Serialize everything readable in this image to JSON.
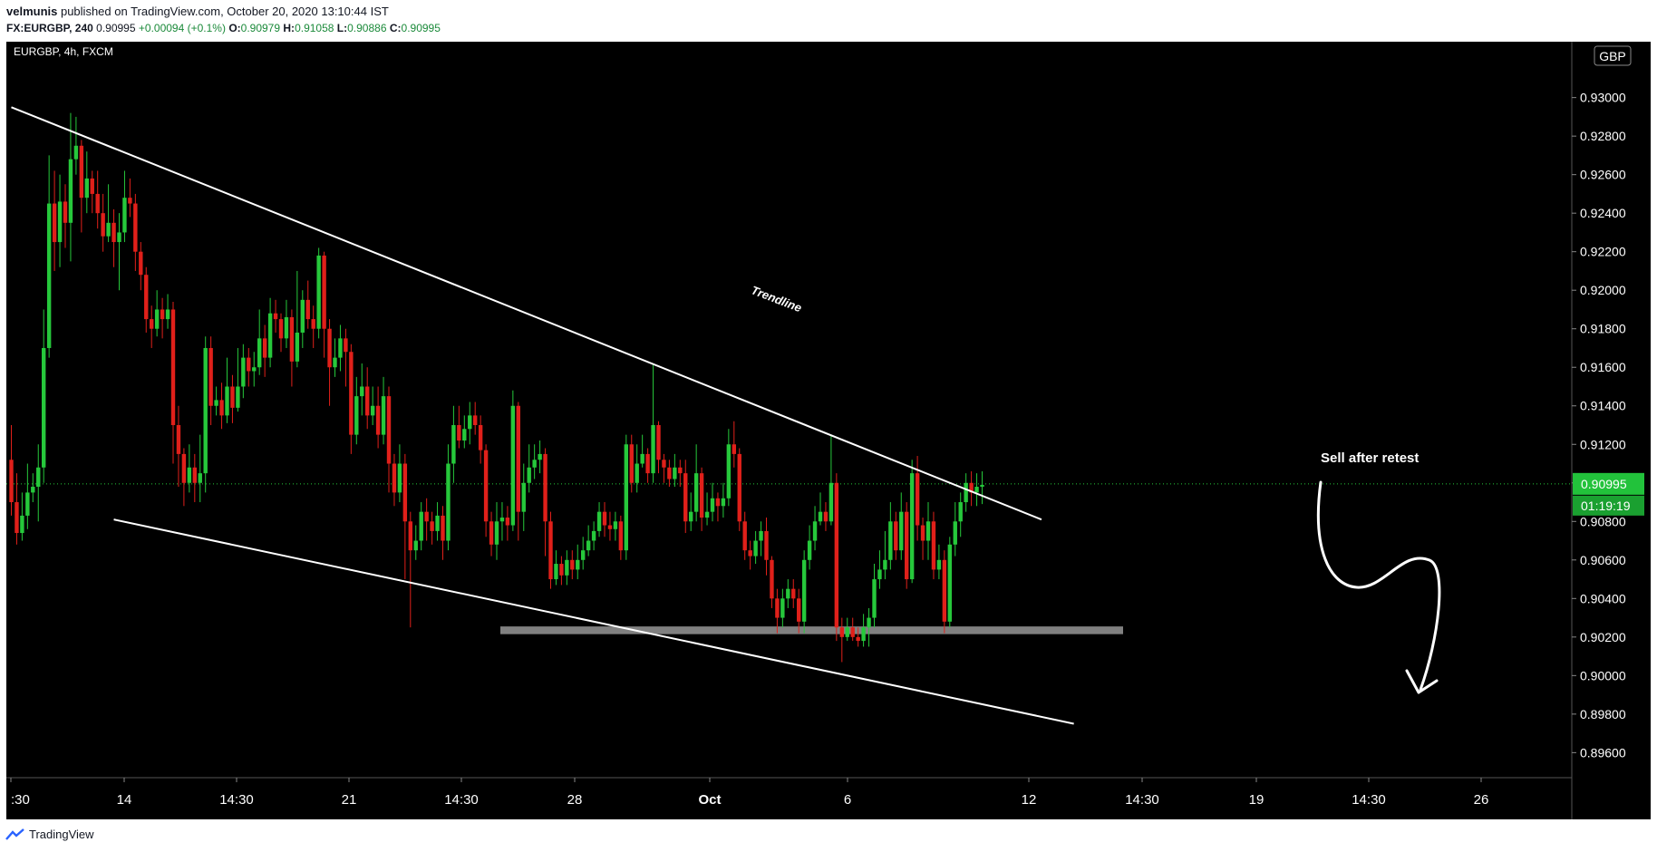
{
  "header": {
    "line1": {
      "author": "velmunis",
      "text": " published on TradingView.com, October 20, 2020 13:10:44 IST"
    },
    "line2": {
      "symbol": "FX:EURGBP, 240",
      "last": "0.90995",
      "change": "+0.00094 (+0.1%)",
      "o_label": "O:",
      "o_value": "0.90979",
      "h_label": "H:",
      "h_value": "0.91058",
      "l_label": "L:",
      "l_value": "0.90886",
      "c_label": "C:",
      "c_value": "0.90995"
    }
  },
  "footer": {
    "brand": "TradingView"
  },
  "colors": {
    "background": "#000000",
    "bull": "#26c83b",
    "bear": "#e0201a",
    "trendline": "#ffffff",
    "support_zone": "#808080",
    "price_label_bg": "#22c23b"
  },
  "chart_data": {
    "type": "candlestick",
    "title": "EURGBP, 4h, FXCM",
    "currency": "GBP",
    "ylim": [
      0.8947,
      0.9329
    ],
    "y_ticks": [
      "0.93000",
      "0.92800",
      "0.92600",
      "0.92400",
      "0.92200",
      "0.92000",
      "0.91800",
      "0.91600",
      "0.91400",
      "0.91200",
      "0.91000",
      "0.90800",
      "0.90600",
      "0.90400",
      "0.90200",
      "0.90000",
      "0.89800",
      "0.89600"
    ],
    "x_ticks": [
      ":30",
      "14",
      "14:30",
      "21",
      "14:30",
      "28",
      "Oct",
      "6",
      "12",
      "14:30",
      "19",
      "14:30",
      "26"
    ],
    "last_price": "0.90995",
    "countdown": "01:19:19",
    "grid": false,
    "annotations": {
      "trendline_label": "Trendline",
      "sell_label": "Sell after retest",
      "support_zone": [
        0.90215,
        0.90255
      ]
    },
    "trendlines": [
      {
        "name": "upper",
        "from": [
          0,
          0.9295
        ],
        "to": [
          191,
          0.9081
        ]
      },
      {
        "name": "lower",
        "from": [
          19,
          0.9081
        ],
        "to": [
          197,
          0.8975
        ]
      }
    ],
    "candles": [
      [
        0.9112,
        0.909,
        0.913,
        0.9083
      ],
      [
        0.909,
        0.9074,
        0.9105,
        0.9068
      ],
      [
        0.9074,
        0.9083,
        0.9095,
        0.907
      ],
      [
        0.9083,
        0.9095,
        0.911,
        0.9076
      ],
      [
        0.9095,
        0.9098,
        0.9105,
        0.909
      ],
      [
        0.9098,
        0.9108,
        0.912,
        0.908
      ],
      [
        0.9108,
        0.917,
        0.919,
        0.91
      ],
      [
        0.917,
        0.9245,
        0.927,
        0.9165
      ],
      [
        0.9245,
        0.9225,
        0.9262,
        0.921
      ],
      [
        0.9225,
        0.9246,
        0.926,
        0.9212
      ],
      [
        0.9246,
        0.9235,
        0.9255,
        0.9222
      ],
      [
        0.9235,
        0.9268,
        0.9292,
        0.9215
      ],
      [
        0.9268,
        0.9275,
        0.929,
        0.926
      ],
      [
        0.9275,
        0.9248,
        0.9278,
        0.923
      ],
      [
        0.9248,
        0.9258,
        0.9272,
        0.924
      ],
      [
        0.9258,
        0.925,
        0.9262,
        0.924
      ],
      [
        0.925,
        0.924,
        0.9262,
        0.9232
      ],
      [
        0.924,
        0.9228,
        0.925,
        0.922
      ],
      [
        0.9228,
        0.9235,
        0.9255,
        0.9225
      ],
      [
        0.9235,
        0.9225,
        0.9242,
        0.9212
      ],
      [
        0.9225,
        0.923,
        0.924,
        0.92
      ],
      [
        0.923,
        0.9248,
        0.9262,
        0.9225
      ],
      [
        0.9248,
        0.9245,
        0.9258,
        0.9238
      ],
      [
        0.9245,
        0.922,
        0.925,
        0.921
      ],
      [
        0.922,
        0.9208,
        0.9225,
        0.92
      ],
      [
        0.9208,
        0.9185,
        0.9212,
        0.9178
      ],
      [
        0.9185,
        0.918,
        0.9192,
        0.917
      ],
      [
        0.918,
        0.919,
        0.92,
        0.9176
      ],
      [
        0.919,
        0.9185,
        0.9196,
        0.9175
      ],
      [
        0.9185,
        0.919,
        0.9198,
        0.918
      ],
      [
        0.919,
        0.913,
        0.9194,
        0.911
      ],
      [
        0.913,
        0.9115,
        0.914,
        0.9098
      ],
      [
        0.9115,
        0.91,
        0.9118,
        0.9088
      ],
      [
        0.91,
        0.9108,
        0.912,
        0.9095
      ],
      [
        0.9108,
        0.91,
        0.9115,
        0.909
      ],
      [
        0.91,
        0.9105,
        0.9125,
        0.909
      ],
      [
        0.9105,
        0.917,
        0.9176,
        0.9095
      ],
      [
        0.917,
        0.914,
        0.9176,
        0.913
      ],
      [
        0.914,
        0.9143,
        0.915,
        0.9135
      ],
      [
        0.9143,
        0.9135,
        0.9152,
        0.9128
      ],
      [
        0.9135,
        0.915,
        0.9165,
        0.9131
      ],
      [
        0.915,
        0.9139,
        0.9156,
        0.9131
      ],
      [
        0.9139,
        0.915,
        0.917,
        0.9137
      ],
      [
        0.915,
        0.9165,
        0.9172,
        0.9144
      ],
      [
        0.9165,
        0.9158,
        0.917,
        0.915
      ],
      [
        0.9158,
        0.916,
        0.9168,
        0.915
      ],
      [
        0.916,
        0.9175,
        0.919,
        0.9156
      ],
      [
        0.9175,
        0.9165,
        0.9182,
        0.9155
      ],
      [
        0.9165,
        0.9188,
        0.9196,
        0.916
      ],
      [
        0.9188,
        0.9185,
        0.9195,
        0.9178
      ],
      [
        0.9185,
        0.9175,
        0.9188,
        0.9168
      ],
      [
        0.9175,
        0.9186,
        0.9195,
        0.917
      ],
      [
        0.9186,
        0.9163,
        0.919,
        0.915
      ],
      [
        0.9163,
        0.9178,
        0.921,
        0.916
      ],
      [
        0.9178,
        0.9195,
        0.92,
        0.917
      ],
      [
        0.9195,
        0.9185,
        0.9205,
        0.918
      ],
      [
        0.9185,
        0.918,
        0.9192,
        0.917
      ],
      [
        0.918,
        0.9218,
        0.9222,
        0.9175
      ],
      [
        0.9218,
        0.918,
        0.922,
        0.9165
      ],
      [
        0.918,
        0.916,
        0.9185,
        0.914
      ],
      [
        0.916,
        0.9165,
        0.9175,
        0.9155
      ],
      [
        0.9165,
        0.9175,
        0.9182,
        0.9158
      ],
      [
        0.9175,
        0.9168,
        0.918,
        0.915
      ],
      [
        0.9168,
        0.9125,
        0.9172,
        0.9115
      ],
      [
        0.9125,
        0.9145,
        0.9155,
        0.912
      ],
      [
        0.9145,
        0.915,
        0.9162,
        0.9135
      ],
      [
        0.915,
        0.9135,
        0.916,
        0.9128
      ],
      [
        0.9135,
        0.914,
        0.915,
        0.913
      ],
      [
        0.914,
        0.9125,
        0.915,
        0.9118
      ],
      [
        0.9125,
        0.9145,
        0.9155,
        0.912
      ],
      [
        0.9145,
        0.911,
        0.915,
        0.9095
      ],
      [
        0.911,
        0.9095,
        0.9115,
        0.9088
      ],
      [
        0.9095,
        0.911,
        0.912,
        0.909
      ],
      [
        0.911,
        0.908,
        0.9115,
        0.905
      ],
      [
        0.908,
        0.9065,
        0.9085,
        0.9025
      ],
      [
        0.9065,
        0.907,
        0.9078,
        0.906
      ],
      [
        0.907,
        0.9085,
        0.909,
        0.9065
      ],
      [
        0.9085,
        0.908,
        0.9092,
        0.907
      ],
      [
        0.908,
        0.9075,
        0.9085,
        0.9068
      ],
      [
        0.9075,
        0.9083,
        0.909,
        0.907
      ],
      [
        0.9083,
        0.907,
        0.9088,
        0.906
      ],
      [
        0.907,
        0.911,
        0.912,
        0.9065
      ],
      [
        0.911,
        0.913,
        0.914,
        0.91
      ],
      [
        0.913,
        0.9122,
        0.914,
        0.9118
      ],
      [
        0.9122,
        0.9128,
        0.9135,
        0.9118
      ],
      [
        0.9128,
        0.9135,
        0.9142,
        0.912
      ],
      [
        0.9135,
        0.913,
        0.9142,
        0.9125
      ],
      [
        0.913,
        0.9117,
        0.9135,
        0.911
      ],
      [
        0.9117,
        0.908,
        0.912,
        0.9072
      ],
      [
        0.908,
        0.9068,
        0.9085,
        0.9062
      ],
      [
        0.9068,
        0.908,
        0.909,
        0.906
      ],
      [
        0.908,
        0.9082,
        0.909,
        0.907
      ],
      [
        0.9082,
        0.9078,
        0.9088,
        0.907
      ],
      [
        0.9078,
        0.914,
        0.9148,
        0.9075
      ],
      [
        0.914,
        0.9085,
        0.9142,
        0.907
      ],
      [
        0.9085,
        0.91,
        0.911,
        0.9075
      ],
      [
        0.91,
        0.9108,
        0.912,
        0.9095
      ],
      [
        0.9108,
        0.9112,
        0.912,
        0.9102
      ],
      [
        0.9112,
        0.9115,
        0.9122,
        0.9105
      ],
      [
        0.9115,
        0.908,
        0.9118,
        0.9062
      ],
      [
        0.908,
        0.905,
        0.9085,
        0.9045
      ],
      [
        0.905,
        0.9058,
        0.9065,
        0.9047
      ],
      [
        0.9058,
        0.9052,
        0.9062,
        0.9047
      ],
      [
        0.9052,
        0.906,
        0.9065,
        0.9047
      ],
      [
        0.906,
        0.9055,
        0.9065,
        0.905
      ],
      [
        0.9055,
        0.906,
        0.9068,
        0.905
      ],
      [
        0.906,
        0.9065,
        0.9072,
        0.9055
      ],
      [
        0.9065,
        0.907,
        0.9078,
        0.9062
      ],
      [
        0.907,
        0.9075,
        0.908,
        0.9065
      ],
      [
        0.9075,
        0.9085,
        0.909,
        0.9072
      ],
      [
        0.9085,
        0.9078,
        0.909,
        0.9072
      ],
      [
        0.9078,
        0.9076,
        0.9085,
        0.907
      ],
      [
        0.9076,
        0.908,
        0.9085,
        0.907
      ],
      [
        0.908,
        0.9065,
        0.9083,
        0.906
      ],
      [
        0.9065,
        0.912,
        0.9125,
        0.906
      ],
      [
        0.912,
        0.91,
        0.9125,
        0.9095
      ],
      [
        0.91,
        0.911,
        0.912,
        0.9095
      ],
      [
        0.911,
        0.9115,
        0.9125,
        0.9108
      ],
      [
        0.9115,
        0.9105,
        0.9118,
        0.91
      ],
      [
        0.9105,
        0.913,
        0.9162,
        0.91
      ],
      [
        0.913,
        0.9112,
        0.9132,
        0.9105
      ],
      [
        0.9112,
        0.9108,
        0.9115,
        0.91
      ],
      [
        0.9108,
        0.9102,
        0.9112,
        0.9098
      ],
      [
        0.9102,
        0.9108,
        0.9115,
        0.9098
      ],
      [
        0.9108,
        0.9105,
        0.9112,
        0.9098
      ],
      [
        0.9105,
        0.908,
        0.9112,
        0.9074
      ],
      [
        0.908,
        0.9085,
        0.9095,
        0.9075
      ],
      [
        0.9085,
        0.9105,
        0.912,
        0.908
      ],
      [
        0.9105,
        0.9082,
        0.9108,
        0.9075
      ],
      [
        0.9082,
        0.9085,
        0.9095,
        0.9078
      ],
      [
        0.9085,
        0.9092,
        0.91,
        0.908
      ],
      [
        0.9092,
        0.9088,
        0.9095,
        0.908
      ],
      [
        0.9088,
        0.9092,
        0.91,
        0.9082
      ],
      [
        0.9092,
        0.912,
        0.9128,
        0.9088
      ],
      [
        0.912,
        0.9115,
        0.9132,
        0.9108
      ],
      [
        0.9115,
        0.908,
        0.9118,
        0.9075
      ],
      [
        0.908,
        0.9065,
        0.9085,
        0.906
      ],
      [
        0.9065,
        0.9062,
        0.907,
        0.9055
      ],
      [
        0.9062,
        0.907,
        0.9075,
        0.9058
      ],
      [
        0.907,
        0.9075,
        0.908,
        0.9062
      ],
      [
        0.9075,
        0.906,
        0.9082,
        0.9052
      ],
      [
        0.906,
        0.904,
        0.9062,
        0.9035
      ],
      [
        0.904,
        0.903,
        0.9045,
        0.9022
      ],
      [
        0.903,
        0.904,
        0.9045,
        0.9025
      ],
      [
        0.904,
        0.9045,
        0.905,
        0.9035
      ],
      [
        0.9045,
        0.904,
        0.905,
        0.9035
      ],
      [
        0.904,
        0.9028,
        0.9045,
        0.9022
      ],
      [
        0.9028,
        0.906,
        0.9065,
        0.9022
      ],
      [
        0.906,
        0.907,
        0.9078,
        0.9055
      ],
      [
        0.907,
        0.908,
        0.9088,
        0.9065
      ],
      [
        0.908,
        0.9085,
        0.9095,
        0.9078
      ],
      [
        0.9085,
        0.908,
        0.909,
        0.9075
      ],
      [
        0.908,
        0.91,
        0.9125,
        0.9078
      ],
      [
        0.91,
        0.9025,
        0.9105,
        0.9018
      ],
      [
        0.9025,
        0.902,
        0.903,
        0.9007
      ],
      [
        0.902,
        0.9025,
        0.903,
        0.9018
      ],
      [
        0.9025,
        0.902,
        0.903,
        0.9018
      ],
      [
        0.902,
        0.9018,
        0.9025,
        0.9015
      ],
      [
        0.9018,
        0.9025,
        0.9032,
        0.9015
      ],
      [
        0.9025,
        0.903,
        0.9035,
        0.9015
      ],
      [
        0.903,
        0.905,
        0.9058,
        0.9025
      ],
      [
        0.905,
        0.9055,
        0.9065,
        0.9045
      ],
      [
        0.9055,
        0.906,
        0.9075,
        0.905
      ],
      [
        0.906,
        0.908,
        0.909,
        0.9055
      ],
      [
        0.908,
        0.9065,
        0.9085,
        0.906
      ],
      [
        0.9065,
        0.9085,
        0.9095,
        0.906
      ],
      [
        0.9085,
        0.905,
        0.909,
        0.9045
      ],
      [
        0.905,
        0.9105,
        0.9112,
        0.9048
      ],
      [
        0.9105,
        0.9078,
        0.9114,
        0.907
      ],
      [
        0.9078,
        0.907,
        0.9082,
        0.906
      ],
      [
        0.907,
        0.908,
        0.909,
        0.906
      ],
      [
        0.908,
        0.9055,
        0.9085,
        0.905
      ],
      [
        0.9055,
        0.906,
        0.9068,
        0.905
      ],
      [
        0.906,
        0.9028,
        0.9065,
        0.9022
      ],
      [
        0.9028,
        0.9068,
        0.9072,
        0.9025
      ],
      [
        0.9068,
        0.908,
        0.909,
        0.9062
      ],
      [
        0.908,
        0.909,
        0.9095,
        0.9072
      ],
      [
        0.909,
        0.91,
        0.9105,
        0.9085
      ],
      [
        0.91,
        0.9095,
        0.9106,
        0.9088
      ],
      [
        0.9095,
        0.9098,
        0.9105,
        0.9088
      ],
      [
        0.9098,
        0.9099,
        0.9106,
        0.9089
      ]
    ]
  }
}
